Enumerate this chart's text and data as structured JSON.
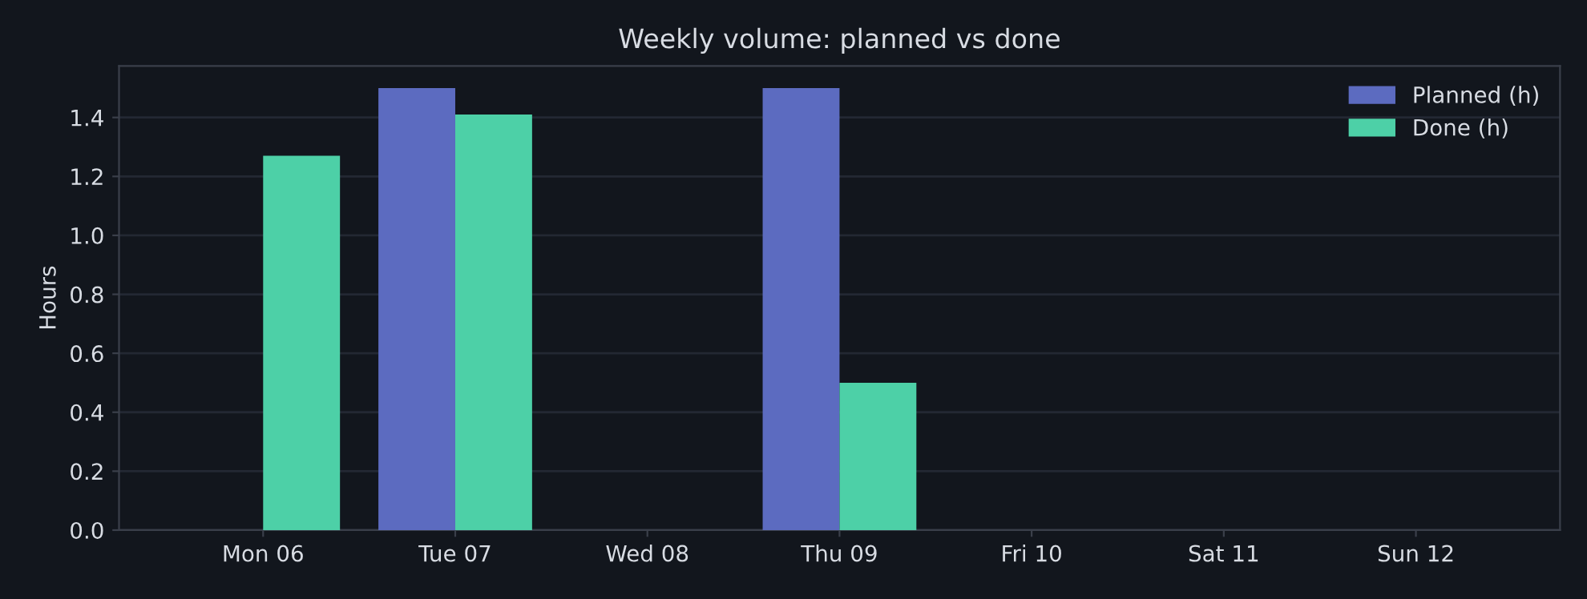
{
  "chart_data": {
    "type": "bar",
    "title": "Weekly volume: planned vs done",
    "ylabel": "Hours",
    "categories": [
      "Mon 06",
      "Tue 07",
      "Wed 08",
      "Thu 09",
      "Fri 10",
      "Sat 11",
      "Sun 12"
    ],
    "series": [
      {
        "name": "Planned (h)",
        "color": "#5c6bc0",
        "values": [
          0,
          1.5,
          0,
          1.5,
          0,
          0,
          0
        ]
      },
      {
        "name": "Done (h)",
        "color": "#4dd0a7",
        "values": [
          1.27,
          1.41,
          0,
          0.5,
          0,
          0,
          0
        ]
      }
    ],
    "ylim": [
      0,
      1.575
    ],
    "yticks": [
      {
        "value": 0,
        "label": "0.0"
      },
      0.2,
      0.4,
      0.6,
      0.8,
      {
        "value": 1,
        "label": "1.0"
      },
      1.2,
      1.4
    ],
    "grid": "y",
    "legend": "top right"
  }
}
